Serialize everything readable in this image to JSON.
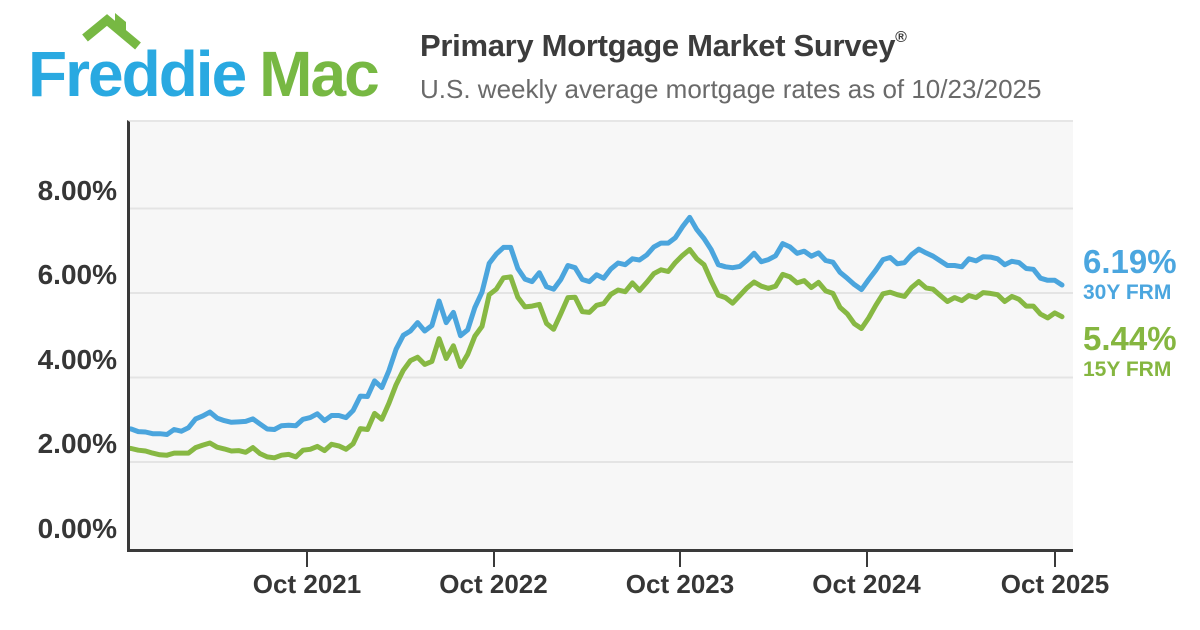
{
  "logo": {
    "word1": "Freddie",
    "word2": "Mac",
    "roof_icon": "house-roof-with-chimney"
  },
  "header": {
    "title": "Primary Mortgage Market Survey",
    "title_mark": "®",
    "subtitle": "U.S. weekly average mortgage rates as of 10/23/2025"
  },
  "colors": {
    "logo_blue": "#29A9E1",
    "logo_green": "#77B843",
    "line_30y": "#4BA5DD",
    "line_15y": "#87B843",
    "plot_bg": "#F7F7F7",
    "gridline": "#E4E4E4",
    "axis": "#3A3A3A",
    "title_text": "#3C3C3C",
    "subtitle_text": "#6A6A6A"
  },
  "chart_data": {
    "type": "line",
    "title": "U.S. weekly average mortgage rates as of 10/23/2025",
    "x_start": "Oct 2020",
    "x_end": "Oct 2025",
    "frequency": "biweekly",
    "grid": true,
    "legend_position": "right",
    "ylim": [
      0,
      10.1
    ],
    "y_ticks": [
      {
        "label": "8.00%",
        "value": 8
      },
      {
        "label": "6.00%",
        "value": 6
      },
      {
        "label": "4.00%",
        "value": 4
      },
      {
        "label": "2.00%",
        "value": 2
      },
      {
        "label": "0.00%",
        "value": 0
      }
    ],
    "x_ticks": [
      "Oct 2021",
      "Oct 2022",
      "Oct 2023",
      "Oct 2024",
      "Oct 2025"
    ],
    "series": [
      {
        "name": "30Y FRM",
        "latest_label": "6.19%",
        "latest": 6.19,
        "color": "#4BA5DD",
        "values": [
          2.8,
          2.78,
          2.72,
          2.71,
          2.67,
          2.67,
          2.65,
          2.77,
          2.73,
          2.81,
          3.02,
          3.09,
          3.18,
          3.04,
          2.98,
          2.94,
          2.95,
          2.96,
          3.02,
          2.9,
          2.78,
          2.77,
          2.86,
          2.87,
          2.86,
          3.01,
          3.05,
          3.14,
          2.98,
          3.1,
          3.1,
          3.05,
          3.22,
          3.56,
          3.55,
          3.92,
          3.76,
          4.16,
          4.67,
          5.0,
          5.1,
          5.3,
          5.1,
          5.23,
          5.81,
          5.3,
          5.54,
          4.99,
          5.13,
          5.66,
          6.02,
          6.7,
          6.92,
          7.08,
          7.08,
          6.58,
          6.33,
          6.27,
          6.48,
          6.15,
          6.09,
          6.32,
          6.65,
          6.6,
          6.32,
          6.27,
          6.43,
          6.35,
          6.57,
          6.71,
          6.67,
          6.81,
          6.78,
          6.9,
          7.09,
          7.18,
          7.18,
          7.31,
          7.57,
          7.79,
          7.5,
          7.29,
          7.03,
          6.67,
          6.62,
          6.6,
          6.63,
          6.77,
          6.94,
          6.74,
          6.79,
          6.88,
          7.17,
          7.09,
          6.94,
          6.99,
          6.87,
          6.95,
          6.77,
          6.73,
          6.49,
          6.35,
          6.2,
          6.08,
          6.32,
          6.54,
          6.79,
          6.84,
          6.69,
          6.72,
          6.91,
          7.04,
          6.95,
          6.87,
          6.76,
          6.65,
          6.65,
          6.62,
          6.81,
          6.76,
          6.86,
          6.85,
          6.81,
          6.67,
          6.75,
          6.72,
          6.58,
          6.56,
          6.35,
          6.3,
          6.3,
          6.19
        ]
      },
      {
        "name": "15Y FRM",
        "latest_label": "5.44%",
        "latest": 5.44,
        "color": "#87B843",
        "values": [
          2.33,
          2.32,
          2.28,
          2.26,
          2.21,
          2.17,
          2.16,
          2.21,
          2.21,
          2.21,
          2.34,
          2.4,
          2.45,
          2.35,
          2.31,
          2.26,
          2.27,
          2.23,
          2.34,
          2.2,
          2.12,
          2.1,
          2.16,
          2.18,
          2.12,
          2.28,
          2.3,
          2.37,
          2.27,
          2.42,
          2.38,
          2.3,
          2.43,
          2.79,
          2.77,
          3.15,
          3.01,
          3.39,
          3.83,
          4.17,
          4.4,
          4.48,
          4.31,
          4.38,
          4.92,
          4.45,
          4.75,
          4.26,
          4.55,
          4.98,
          5.21,
          5.96,
          6.09,
          6.36,
          6.38,
          5.9,
          5.67,
          5.69,
          5.73,
          5.28,
          5.14,
          5.51,
          5.89,
          5.9,
          5.56,
          5.54,
          5.71,
          5.75,
          5.97,
          6.07,
          6.03,
          6.24,
          6.06,
          6.25,
          6.46,
          6.55,
          6.51,
          6.72,
          6.89,
          7.03,
          6.81,
          6.67,
          6.29,
          5.95,
          5.89,
          5.76,
          5.94,
          6.12,
          6.26,
          6.16,
          6.11,
          6.16,
          6.44,
          6.38,
          6.24,
          6.29,
          6.13,
          6.25,
          6.05,
          5.99,
          5.66,
          5.51,
          5.27,
          5.16,
          5.41,
          5.71,
          5.98,
          6.02,
          5.96,
          5.92,
          6.13,
          6.27,
          6.12,
          6.09,
          5.94,
          5.8,
          5.89,
          5.82,
          5.94,
          5.89,
          6.01,
          5.99,
          5.96,
          5.8,
          5.92,
          5.85,
          5.69,
          5.69,
          5.5,
          5.41,
          5.53,
          5.44
        ]
      }
    ]
  }
}
